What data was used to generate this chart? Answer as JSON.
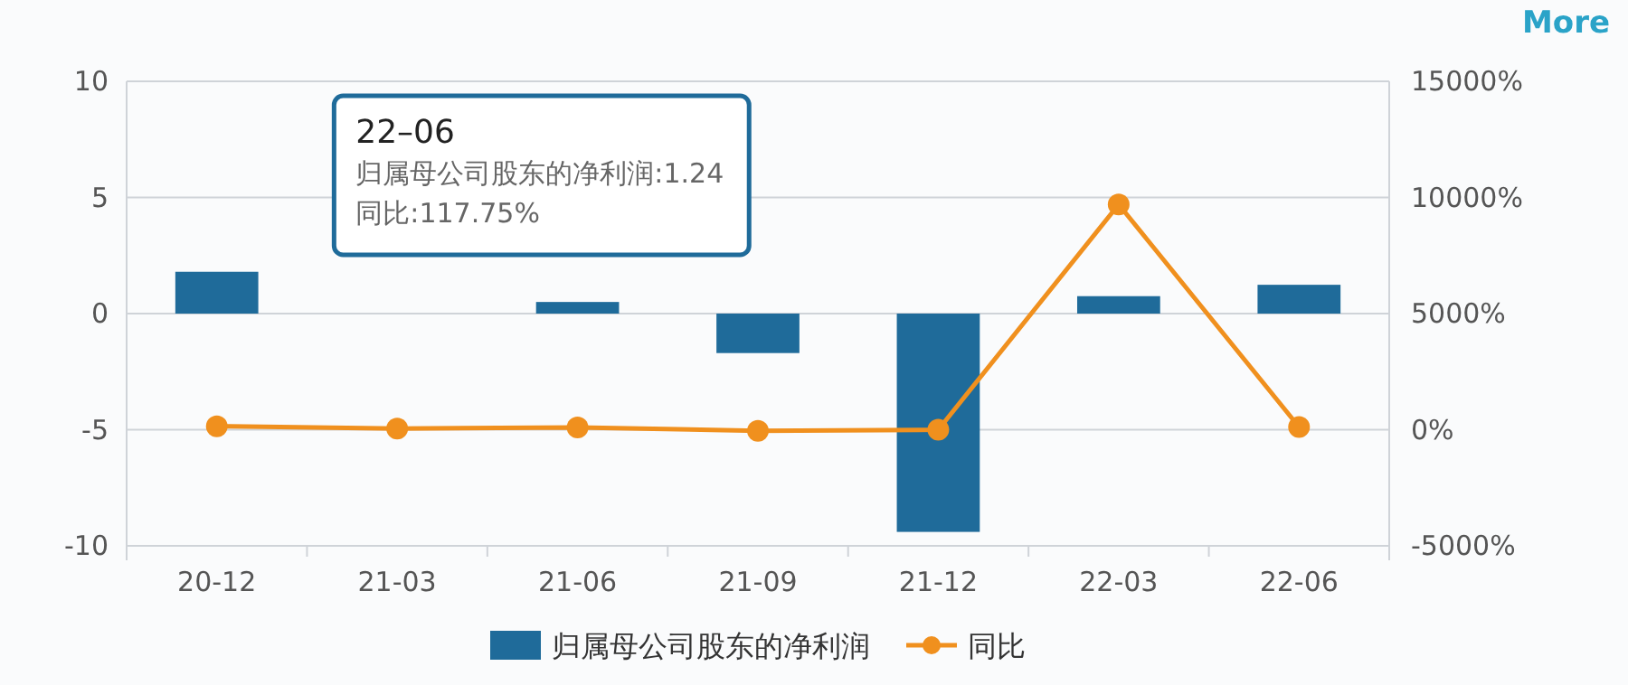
{
  "chart_data": {
    "type": "bar",
    "categories": [
      "20-12",
      "21-03",
      "21-06",
      "21-09",
      "21-12",
      "22-03",
      "22-06"
    ],
    "ylim": [
      -10,
      10
    ],
    "yticks": [
      -10,
      -5,
      0,
      5,
      10
    ],
    "y2lim": [
      -5000,
      15000
    ],
    "y2ticks": [
      {
        "value": -5000,
        "label": "-5000%"
      },
      {
        "value": 0,
        "label": "0%"
      },
      {
        "value": 5000,
        "label": "5000%"
      },
      {
        "value": 10000,
        "label": "10000%"
      },
      {
        "value": 15000,
        "label": "15000%"
      }
    ],
    "grid": "y",
    "legend": "bottom",
    "marker": "circle",
    "series": [
      {
        "name": "归属母公司股东的净利润",
        "color": "#1f6b9a",
        "values": [
          1.8,
          null,
          0.5,
          -1.7,
          -9.4,
          0.75,
          1.24
        ]
      },
      {
        "name": "同比",
        "type": "line",
        "axis": "y2",
        "color": "#f0901e",
        "values": [
          150,
          50,
          100,
          -50,
          0,
          9700,
          117.75
        ]
      }
    ],
    "annotations": [
      "More",
      "22–06",
      "归属母公司股东的净利润:1.24",
      "同比:117.75%"
    ]
  }
}
